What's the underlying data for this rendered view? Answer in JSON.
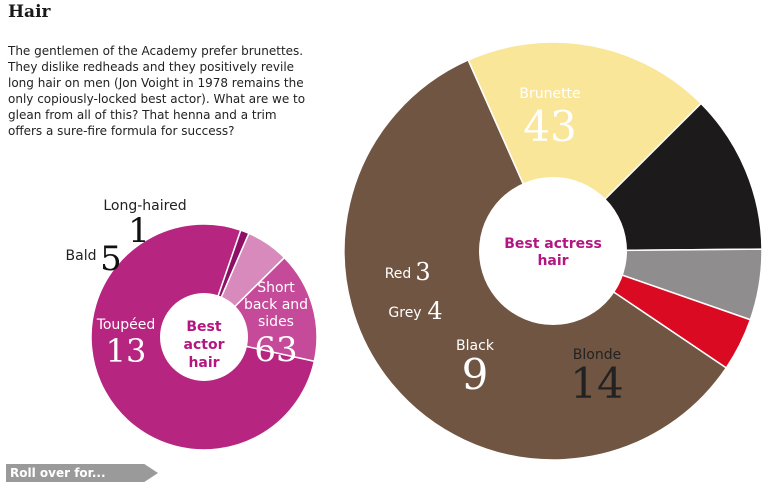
{
  "title": "Hair",
  "intro": "The gentlemen of the Academy prefer brunettes. They dislike redheads and they positively revile long hair on men (Jon Voight in 1978 remains the only copiously-locked best actor). What are we to glean from all of this? That henna and a trim offers a sure-fire formula for success?",
  "rollover_label": "Roll over for...",
  "chart_data": [
    {
      "type": "pie",
      "center_label": [
        "Best",
        "actor",
        "hair"
      ],
      "categories": [
        "Short back and sides",
        "Toupéed",
        "Bald",
        "Long-haired"
      ],
      "label_lines": [
        [
          "Short",
          "back and",
          "sides"
        ],
        [
          "Toupéed"
        ],
        [
          "Bald"
        ],
        [
          "Long-haired"
        ]
      ],
      "values": [
        63,
        13,
        5,
        1
      ],
      "colors": [
        "#b6257f",
        "#c54a9a",
        "#d98abc",
        "#8f0f66"
      ]
    },
    {
      "type": "pie",
      "center_label": [
        "Best actress",
        "hair"
      ],
      "categories": [
        "Brunette",
        "Blonde",
        "Black",
        "Grey",
        "Red"
      ],
      "values": [
        43,
        14,
        9,
        4,
        3
      ],
      "colors": [
        "#705542",
        "#f9e699",
        "#1c1a1b",
        "#8f8d8e",
        "#d90a21"
      ]
    }
  ]
}
